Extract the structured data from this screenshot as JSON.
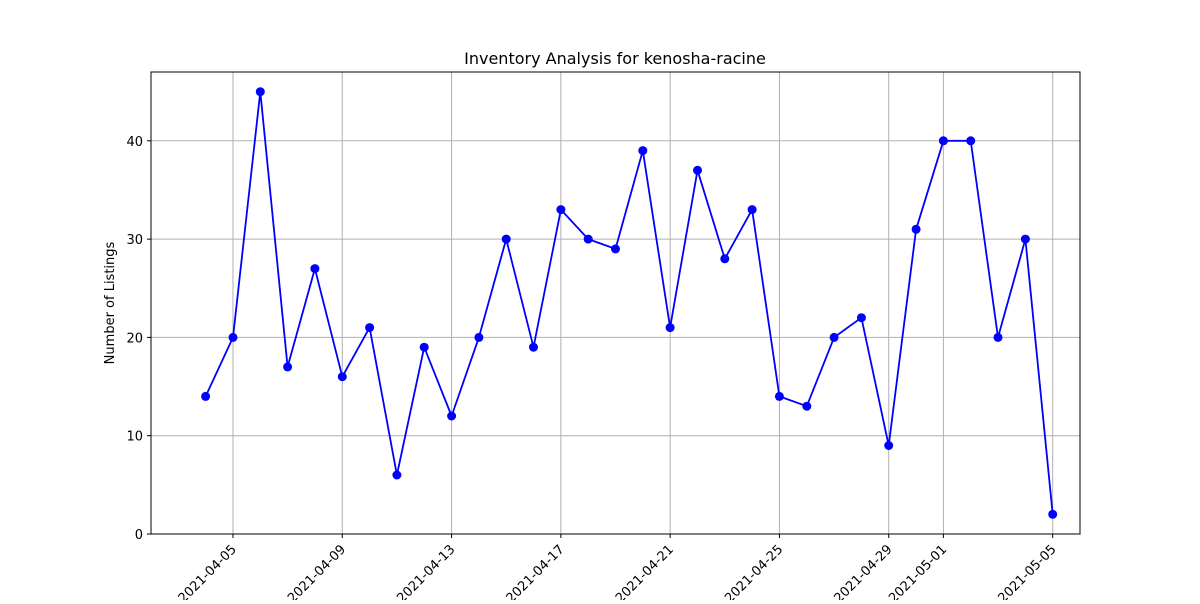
{
  "chart_data": {
    "type": "line",
    "title": "Inventory Analysis for kenosha-racine",
    "xlabel": "",
    "ylabel": "Number of Listings",
    "x": [
      "2021-04-04",
      "2021-04-05",
      "2021-04-06",
      "2021-04-07",
      "2021-04-08",
      "2021-04-09",
      "2021-04-10",
      "2021-04-11",
      "2021-04-12",
      "2021-04-13",
      "2021-04-14",
      "2021-04-15",
      "2021-04-16",
      "2021-04-17",
      "2021-04-18",
      "2021-04-19",
      "2021-04-20",
      "2021-04-21",
      "2021-04-22",
      "2021-04-23",
      "2021-04-24",
      "2021-04-25",
      "2021-04-26",
      "2021-04-27",
      "2021-04-28",
      "2021-04-29",
      "2021-04-30",
      "2021-05-01",
      "2021-05-02",
      "2021-05-03",
      "2021-05-04",
      "2021-05-05"
    ],
    "values": [
      14,
      20,
      45,
      17,
      27,
      16,
      21,
      6,
      19,
      12,
      20,
      30,
      19,
      33,
      30,
      29,
      39,
      21,
      37,
      28,
      33,
      14,
      13,
      20,
      22,
      9,
      31,
      40,
      40,
      20,
      30,
      2
    ],
    "x_ticks": [
      "2021-04-05",
      "2021-04-09",
      "2021-04-13",
      "2021-04-17",
      "2021-04-21",
      "2021-04-25",
      "2021-04-29",
      "2021-05-01",
      "2021-05-05"
    ],
    "y_ticks": [
      0,
      10,
      20,
      30,
      40
    ],
    "xlim": [
      "2021-04-02",
      "2021-05-06"
    ],
    "ylim": [
      0,
      47
    ],
    "grid": true,
    "marker": "circle",
    "line_color": "#0000ff"
  }
}
